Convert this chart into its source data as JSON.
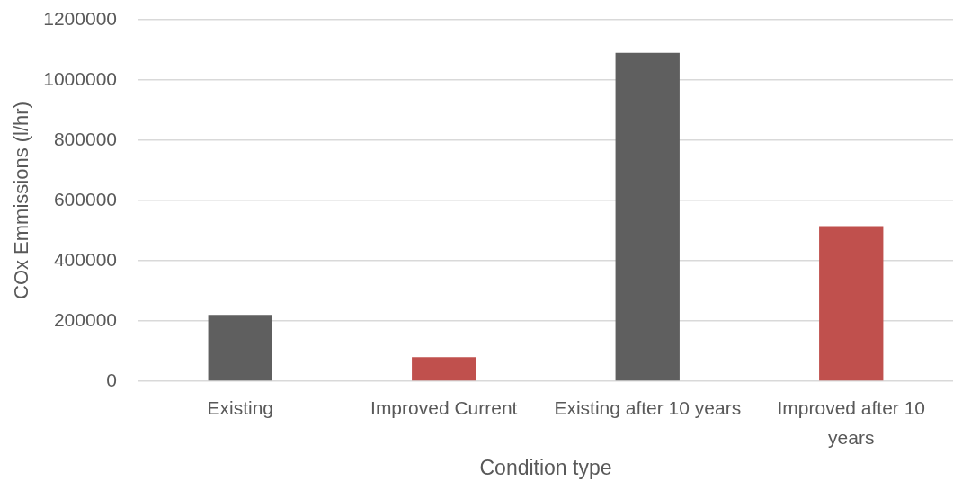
{
  "chart_data": {
    "type": "bar",
    "xlabel": "Condition type",
    "ylabel": "COx Emmissions (l/hr)",
    "categories": [
      "Existing",
      "Improved Current",
      "Existing after 10 years",
      "Improved after 10 years"
    ],
    "values": [
      220000,
      80000,
      1090000,
      515000
    ],
    "colors": [
      "#5f5f5f",
      "#c0504d",
      "#5f5f5f",
      "#c0504d"
    ],
    "ylim": [
      0,
      1200000
    ],
    "yticks": [
      0,
      200000,
      400000,
      600000,
      800000,
      1000000,
      1200000
    ],
    "grid": "y"
  }
}
